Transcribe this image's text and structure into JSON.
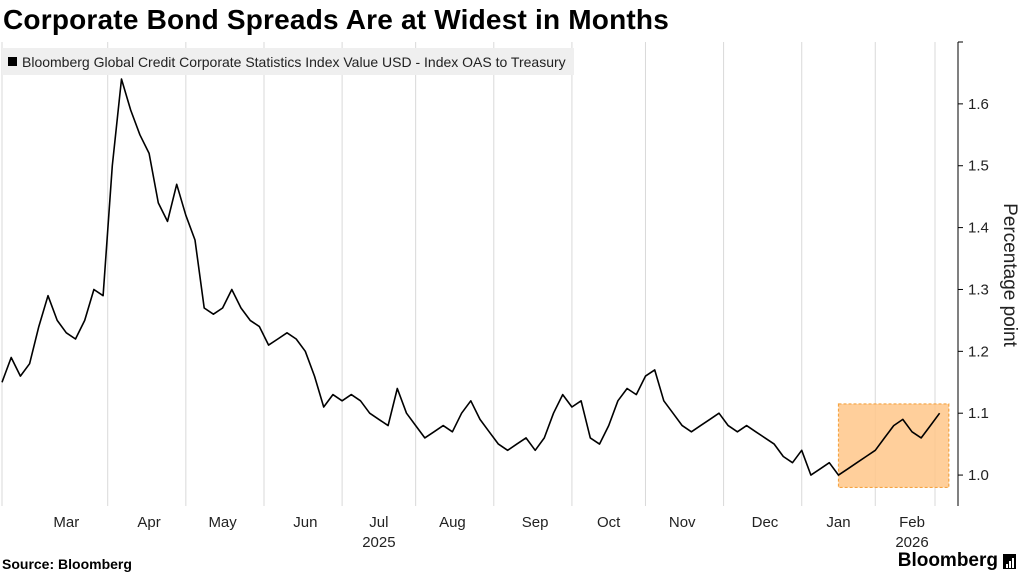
{
  "header": {
    "title": "Corporate Bond Spreads Are at Widest in Months"
  },
  "footer": {
    "source": "Source: Bloomberg",
    "brand": "Bloomberg"
  },
  "colors": {
    "line": "#000000",
    "highlight_fill": "#ffc78a",
    "highlight_stroke": "#f5a442",
    "grid": "#d9d9d9"
  },
  "chart_data": {
    "type": "line",
    "title": "Corporate Bond Spreads Are at Widest in Months",
    "series": [
      {
        "name": "Bloomberg Global Credit Corporate Statistics Index Value USD - Index OAS to Treasury",
        "x": [
          2025.13,
          2025.14,
          2025.15,
          2025.16,
          2025.17,
          2025.18,
          2025.19,
          2025.2,
          2025.21,
          2025.22,
          2025.23,
          2025.24,
          2025.25,
          2025.26,
          2025.27,
          2025.28,
          2025.29,
          2025.3,
          2025.31,
          2025.32,
          2025.33,
          2025.34,
          2025.35,
          2025.36,
          2025.37,
          2025.38,
          2025.39,
          2025.4,
          2025.41,
          2025.42,
          2025.43,
          2025.44,
          2025.45,
          2025.46,
          2025.47,
          2025.48,
          2025.49,
          2025.5,
          2025.51,
          2025.52,
          2025.53,
          2025.54,
          2025.55,
          2025.56,
          2025.57,
          2025.58,
          2025.59,
          2025.6,
          2025.61,
          2025.62,
          2025.63,
          2025.64,
          2025.65,
          2025.66,
          2025.67,
          2025.68,
          2025.69,
          2025.7,
          2025.71,
          2025.72,
          2025.73,
          2025.74,
          2025.75,
          2025.76,
          2025.77,
          2025.78,
          2025.79,
          2025.8,
          2025.81,
          2025.82,
          2025.83,
          2025.84,
          2025.85,
          2025.86,
          2025.87,
          2025.88,
          2025.89,
          2025.9,
          2025.91,
          2025.92,
          2025.93,
          2025.94,
          2025.95,
          2025.96,
          2025.97,
          2025.98,
          2025.99,
          2026.0,
          2026.01,
          2026.02,
          2026.03,
          2026.04,
          2026.05,
          2026.06,
          2026.07,
          2026.08,
          2026.09,
          2026.1,
          2026.11,
          2026.12,
          2026.13,
          2026.14,
          2026.15
        ],
        "values": [
          1.15,
          1.19,
          1.16,
          1.18,
          1.24,
          1.29,
          1.25,
          1.23,
          1.22,
          1.25,
          1.3,
          1.29,
          1.5,
          1.64,
          1.59,
          1.55,
          1.52,
          1.44,
          1.41,
          1.47,
          1.42,
          1.38,
          1.27,
          1.26,
          1.27,
          1.3,
          1.27,
          1.25,
          1.24,
          1.21,
          1.22,
          1.23,
          1.22,
          1.2,
          1.16,
          1.11,
          1.13,
          1.12,
          1.13,
          1.12,
          1.1,
          1.09,
          1.08,
          1.14,
          1.1,
          1.08,
          1.06,
          1.07,
          1.08,
          1.07,
          1.1,
          1.12,
          1.09,
          1.07,
          1.05,
          1.04,
          1.05,
          1.06,
          1.04,
          1.06,
          1.1,
          1.13,
          1.11,
          1.12,
          1.06,
          1.05,
          1.08,
          1.12,
          1.14,
          1.13,
          1.16,
          1.17,
          1.12,
          1.1,
          1.08,
          1.07,
          1.08,
          1.09,
          1.1,
          1.08,
          1.07,
          1.08,
          1.07,
          1.06,
          1.05,
          1.03,
          1.02,
          1.04,
          1.0,
          1.01,
          1.02,
          1.0,
          1.01,
          1.02,
          1.03,
          1.04,
          1.06,
          1.08,
          1.09,
          1.07,
          1.06,
          1.08,
          1.1
        ]
      }
    ],
    "ylabel": "Percentage point",
    "ylim": [
      0.95,
      1.7
    ],
    "yticks": [
      1.0,
      1.1,
      1.2,
      1.3,
      1.4,
      1.5,
      1.6
    ],
    "ytick_labels": [
      "1.0",
      "1.1",
      "1.2",
      "1.3",
      "1.4",
      "1.5",
      "1.6"
    ],
    "xlim": [
      2025.13,
      2026.17
    ],
    "xticks": [
      {
        "x": 2025.2,
        "label": "Mar"
      },
      {
        "x": 2025.29,
        "label": "Apr"
      },
      {
        "x": 2025.37,
        "label": "May"
      },
      {
        "x": 2025.46,
        "label": "Jun"
      },
      {
        "x": 2025.54,
        "label": "Jul"
      },
      {
        "x": 2025.62,
        "label": "Aug"
      },
      {
        "x": 2025.71,
        "label": "Sep"
      },
      {
        "x": 2025.79,
        "label": "Oct"
      },
      {
        "x": 2025.87,
        "label": "Nov"
      },
      {
        "x": 2025.96,
        "label": "Dec"
      },
      {
        "x": 2026.04,
        "label": "Jan"
      },
      {
        "x": 2026.12,
        "label": "Feb"
      }
    ],
    "year_labels": [
      {
        "x": 2025.54,
        "label": "2025"
      },
      {
        "x": 2026.12,
        "label": "2026"
      }
    ],
    "highlight": {
      "x_start": 2026.04,
      "x_end": 2026.16,
      "y_start": 0.98,
      "y_end": 1.115
    },
    "legend": "top-left",
    "grid": "vertical"
  }
}
